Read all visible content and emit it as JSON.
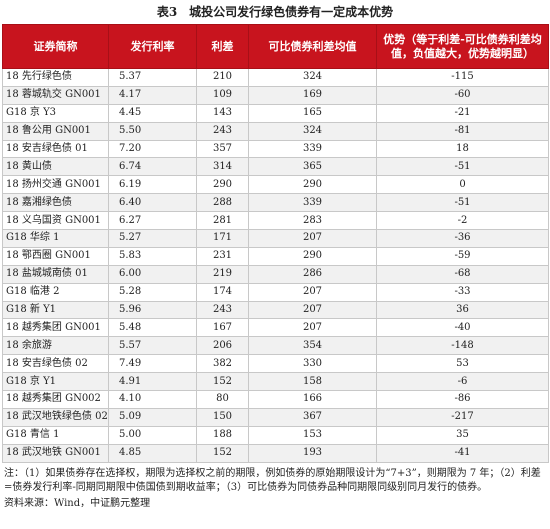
{
  "title": "表3　城投公司发行绿色债券有一定成本优势",
  "headers": [
    "证券简称",
    "发行利率",
    "利差",
    "可比债券利差均值",
    "优势（等于利差-可比债券利差均值，负值越大，优势越明显）"
  ],
  "rows": [
    [
      "18 先行绿色债",
      "5.37",
      "210",
      "324",
      "-115"
    ],
    [
      "18 蓉城轨交 GN001",
      "4.17",
      "109",
      "169",
      "-60"
    ],
    [
      "G18 京 Y3",
      "4.45",
      "143",
      "165",
      "-21"
    ],
    [
      "18 鲁公用 GN001",
      "5.50",
      "243",
      "324",
      "-81"
    ],
    [
      "18 安吉绿色债 01",
      "7.20",
      "357",
      "339",
      "18"
    ],
    [
      "18 黄山债",
      "6.74",
      "314",
      "365",
      "-51"
    ],
    [
      "18 扬州交通 GN001",
      "6.19",
      "290",
      "290",
      "0"
    ],
    [
      "18 嘉湘绿色债",
      "6.40",
      "288",
      "339",
      "-51"
    ],
    [
      "18 义乌国资 GN001",
      "6.27",
      "281",
      "283",
      "-2"
    ],
    [
      "G18 华综 1",
      "5.27",
      "171",
      "207",
      "-36"
    ],
    [
      "18 鄂西圈 GN001",
      "5.83",
      "231",
      "290",
      "-59"
    ],
    [
      "18 盐城城南债 01",
      "6.00",
      "219",
      "286",
      "-68"
    ],
    [
      "G18 临港 2",
      "5.28",
      "174",
      "207",
      "-33"
    ],
    [
      "G18 新 Y1",
      "5.96",
      "243",
      "207",
      "36"
    ],
    [
      "18 越秀集团 GN001",
      "5.48",
      "167",
      "207",
      "-40"
    ],
    [
      "18 余旅游",
      "5.57",
      "206",
      "354",
      "-148"
    ],
    [
      "18 安吉绿色债 02",
      "7.49",
      "382",
      "330",
      "53"
    ],
    [
      "G18 京 Y1",
      "4.91",
      "152",
      "158",
      "-6"
    ],
    [
      "18 越秀集团 GN002",
      "4.10",
      "80",
      "166",
      "-86"
    ],
    [
      "18 武汉地铁绿色债 02",
      "5.09",
      "150",
      "367",
      "-217"
    ],
    [
      "G18 青信 1",
      "5.00",
      "188",
      "153",
      "35"
    ],
    [
      "18 武汉地铁 GN001",
      "4.85",
      "152",
      "193",
      "-41"
    ]
  ],
  "notes": "注：（1）如果债券存在选择权，期限为选择权之前的期限，例如债券的原始期限设计为“7+3”，则期限为 7 年；（2）利差=债券发行利率-同期同期限中债国债到期收益率；（3）可比债券为同债券品种同期限同级别同月发行的债券。",
  "source": "资料来源：Wind，中证鹏元整理"
}
